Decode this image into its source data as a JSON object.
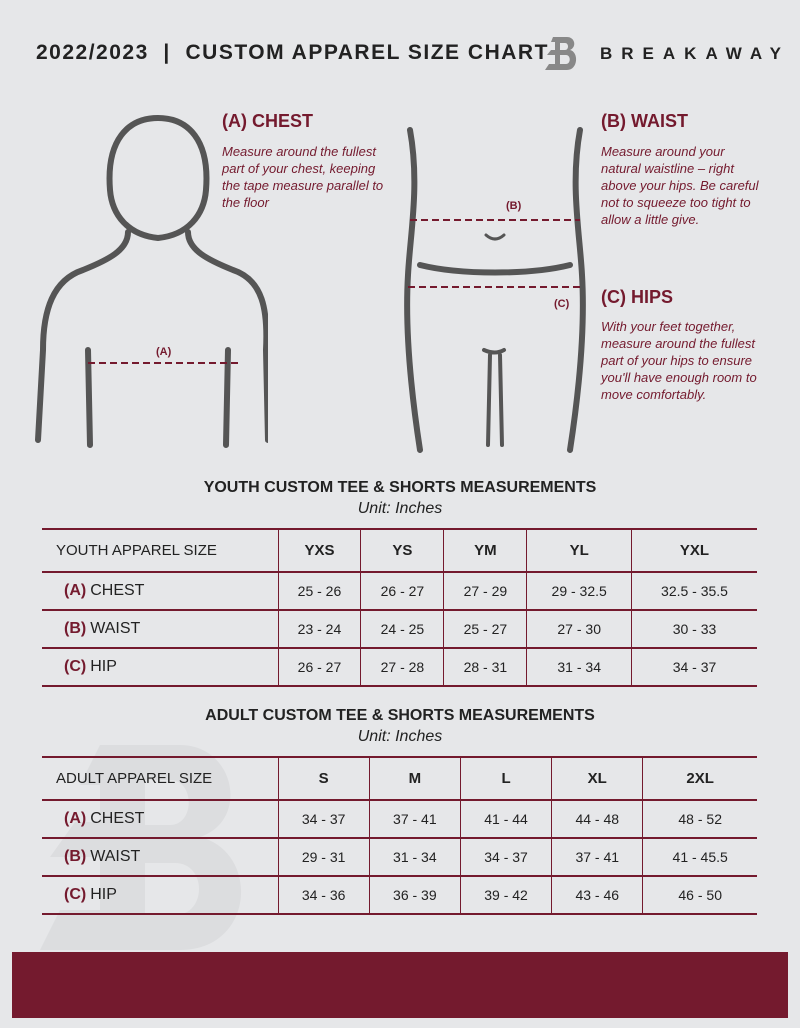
{
  "header": {
    "title": "2022/2023  |  CUSTOM APPAREL SIZE CHART",
    "brand": "BREAKAWAY"
  },
  "colors": {
    "accent": "#741a2e",
    "background": "#e6e7e9"
  },
  "guide": {
    "chest": {
      "heading": "(A) CHEST",
      "text": "Measure around the fullest part of your chest, keeping the tape measure parallel to the floor",
      "marker": "(A)"
    },
    "waist": {
      "heading": "(B) WAIST",
      "text": "Measure around your natural waistline – right above your hips. Be careful not to squeeze too tight to allow a little give.",
      "marker": "(B)"
    },
    "hips": {
      "heading": "(C) HIPS",
      "text": "With your feet together, measure around the fullest part of your hips to ensure you'll have enough room to move comfortably.",
      "marker": "(C)"
    }
  },
  "youth": {
    "title": "YOUTH CUSTOM TEE & SHORTS MEASUREMENTS",
    "unit": "Unit: Inches",
    "header": "YOUTH APPAREL SIZE",
    "sizes": [
      "YXS",
      "YS",
      "YM",
      "YL",
      "YXL"
    ],
    "rows": [
      {
        "tag": "(A)",
        "name": "CHEST",
        "values": [
          "25 - 26",
          "26 - 27",
          "27 - 29",
          "29 - 32.5",
          "32.5 - 35.5"
        ]
      },
      {
        "tag": "(B)",
        "name": "WAIST",
        "values": [
          "23 - 24",
          "24 - 25",
          "25 - 27",
          "27 - 30",
          "30 - 33"
        ]
      },
      {
        "tag": "(C)",
        "name": "HIP",
        "values": [
          "26 - 27",
          "27 - 28",
          "28 - 31",
          "31 - 34",
          "34 - 37"
        ]
      }
    ]
  },
  "adult": {
    "title": "ADULT CUSTOM TEE & SHORTS MEASUREMENTS",
    "unit": "Unit: Inches",
    "header": "ADULT APPAREL SIZE",
    "sizes": [
      "S",
      "M",
      "L",
      "XL",
      "2XL"
    ],
    "rows": [
      {
        "tag": "(A)",
        "name": "CHEST",
        "values": [
          "34 - 37",
          "37 - 41",
          "41 - 44",
          "44 - 48",
          "48 - 52"
        ]
      },
      {
        "tag": "(B)",
        "name": "WAIST",
        "values": [
          "29 - 31",
          "31 - 34",
          "34 - 37",
          "37 - 41",
          "41 - 45.5"
        ]
      },
      {
        "tag": "(C)",
        "name": "HIP",
        "values": [
          "34 - 36",
          "36 - 39",
          "39 - 42",
          "43 - 46",
          "46 - 50"
        ]
      }
    ]
  }
}
